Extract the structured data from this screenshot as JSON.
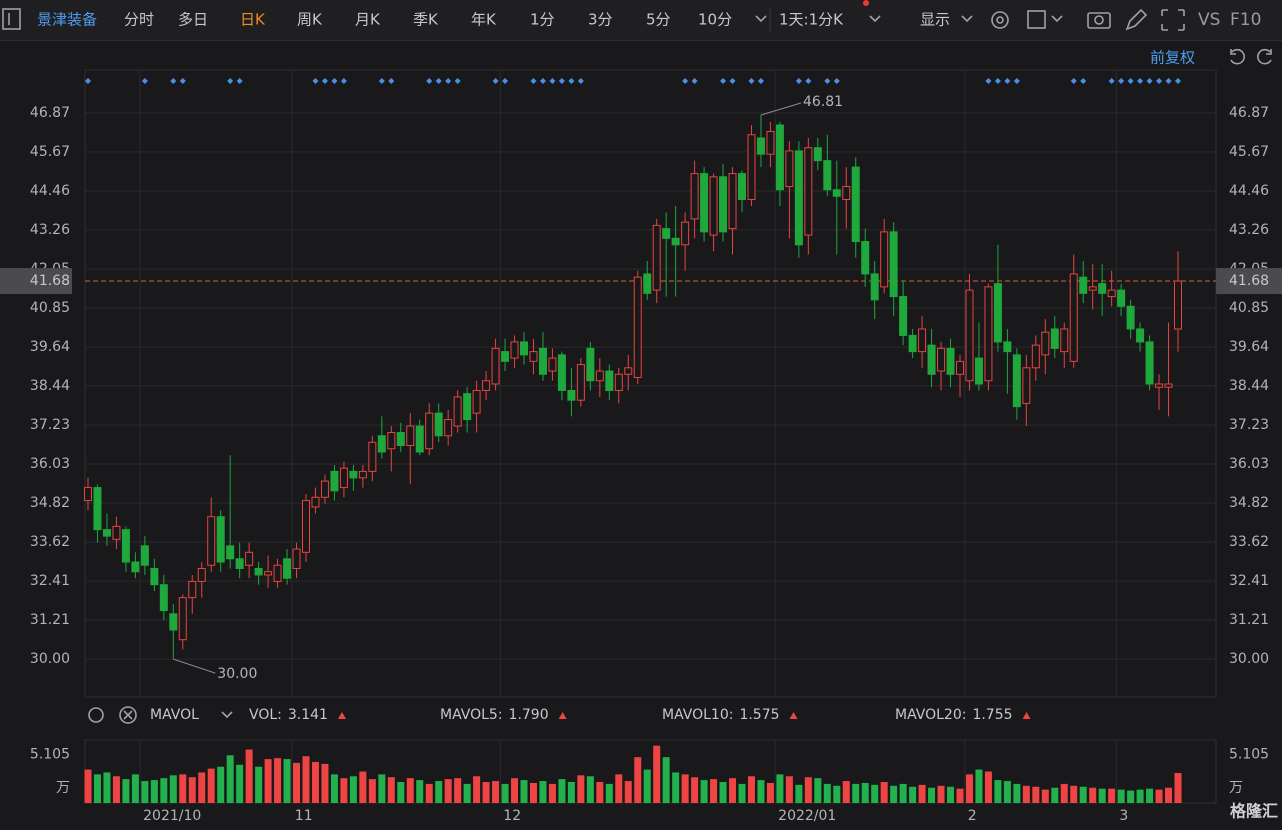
{
  "toolbar": {
    "stock": "景津装备",
    "periods": [
      "分时",
      "多日",
      "日K",
      "周K",
      "月K",
      "季K",
      "年K",
      "1分",
      "3分",
      "5分",
      "10分"
    ],
    "active": "日K",
    "range": "1天:1分K",
    "display": "显示",
    "vs": "VS",
    "f10": "F10"
  },
  "adjust": "前复权",
  "indicator_bar": {
    "name": "MAVOL",
    "items": [
      {
        "name": "VOL:",
        "value": "3.141",
        "color": "#ef4444"
      },
      {
        "name": "MAVOL5:",
        "value": "1.790",
        "color": "#f0a030"
      },
      {
        "name": "MAVOL10:",
        "value": "1.575",
        "color": "#3cb6e8"
      },
      {
        "name": "MAVOL20:",
        "value": "1.755",
        "color": "#e070e0"
      }
    ]
  },
  "watermark": "格隆汇",
  "chart_data": {
    "type": "candlestick",
    "categories": [
      null,
      null,
      null,
      null,
      null,
      null,
      "2021/10",
      null,
      null,
      null,
      null,
      null,
      null,
      null,
      null,
      null,
      null,
      null,
      null,
      null,
      null,
      null,
      "11",
      null,
      null,
      null,
      null,
      null,
      null,
      null,
      null,
      null,
      null,
      null,
      null,
      null,
      null,
      null,
      null,
      null,
      null,
      null,
      null,
      null,
      "12",
      null,
      null,
      null,
      null,
      null,
      null,
      null,
      null,
      null,
      null,
      null,
      null,
      null,
      null,
      null,
      null,
      null,
      null,
      null,
      null,
      null,
      null,
      null,
      null,
      null,
      null,
      null,
      null,
      "2022/01",
      null,
      null,
      null,
      null,
      null,
      null,
      null,
      null,
      null,
      null,
      null,
      null,
      null,
      null,
      null,
      null,
      null,
      null,
      null,
      "2",
      null,
      null,
      null,
      null,
      null,
      null,
      null,
      null,
      null,
      null,
      null,
      null,
      null,
      null,
      null,
      "3",
      null,
      null,
      null,
      null,
      null,
      null
    ],
    "open": [
      34.9,
      35.3,
      34.0,
      33.7,
      34.0,
      33.0,
      33.5,
      32.8,
      32.3,
      31.4,
      30.6,
      31.9,
      32.4,
      32.9,
      34.4,
      33.5,
      33.1,
      32.9,
      32.8,
      32.6,
      32.4,
      33.1,
      32.8,
      33.3,
      34.7,
      35.0,
      35.8,
      35.3,
      35.8,
      35.6,
      35.8,
      36.9,
      36.5,
      37.0,
      36.6,
      37.2,
      36.5,
      37.6,
      36.9,
      37.2,
      38.2,
      37.6,
      38.3,
      38.5,
      39.5,
      39.3,
      39.8,
      39.2,
      39.6,
      38.9,
      39.4,
      38.3,
      38.0,
      39.6,
      38.6,
      38.9,
      38.3,
      38.8,
      38.7,
      41.9,
      41.4,
      43.3,
      43.0,
      42.8,
      43.6,
      45.0,
      43.1,
      44.9,
      43.3,
      45.0,
      44.2,
      46.1,
      45.6,
      46.5,
      44.6,
      45.7,
      43.1,
      45.8,
      45.4,
      44.5,
      44.2,
      45.2,
      42.9,
      41.9,
      41.5,
      43.2,
      41.2,
      40.0,
      39.5,
      39.7,
      38.9,
      39.6,
      38.8,
      38.6,
      39.3,
      38.6,
      41.6,
      39.8,
      39.4,
      37.9,
      39.0,
      39.4,
      40.2,
      39.5,
      39.2,
      41.8,
      41.4,
      41.6,
      41.2,
      41.4,
      40.9,
      40.2,
      39.8,
      38.4,
      38.4,
      40.2
    ],
    "high": [
      35.6,
      35.4,
      34.5,
      34.4,
      34.1,
      33.3,
      33.8,
      33.1,
      32.6,
      31.7,
      32.0,
      32.6,
      33.0,
      35.0,
      34.6,
      36.3,
      33.6,
      33.6,
      33.0,
      33.2,
      33.1,
      33.4,
      33.6,
      35.1,
      35.3,
      35.7,
      36.0,
      36.1,
      36.0,
      36.0,
      36.9,
      37.5,
      37.2,
      37.3,
      37.6,
      37.4,
      37.9,
      37.9,
      37.7,
      38.3,
      38.4,
      38.6,
      38.9,
      39.9,
      39.9,
      40.0,
      40.1,
      39.9,
      40.1,
      39.6,
      39.5,
      39.0,
      39.3,
      39.8,
      39.3,
      39.1,
      39.0,
      39.4,
      42.0,
      42.3,
      43.6,
      43.8,
      44.0,
      43.8,
      45.4,
      45.2,
      45.0,
      45.3,
      45.2,
      45.1,
      46.5,
      46.81,
      46.6,
      46.6,
      46.0,
      46.0,
      46.1,
      46.1,
      46.2,
      45.4,
      45.2,
      45.5,
      43.3,
      42.3,
      43.6,
      43.5,
      41.7,
      40.2,
      40.6,
      40.2,
      39.8,
      39.9,
      39.4,
      41.9,
      40.4,
      41.6,
      42.8,
      40.2,
      39.6,
      39.4,
      40.0,
      40.5,
      40.6,
      40.4,
      42.5,
      42.3,
      42.2,
      42.2,
      42.0,
      41.6,
      41.1,
      40.4,
      40.0,
      38.8,
      40.4,
      42.6
    ],
    "low": [
      34.6,
      33.6,
      33.5,
      33.4,
      32.7,
      32.5,
      32.6,
      32.1,
      31.2,
      30.0,
      30.3,
      31.4,
      31.9,
      32.7,
      32.7,
      32.8,
      32.5,
      32.5,
      32.3,
      32.2,
      32.2,
      32.3,
      32.5,
      33.0,
      34.5,
      34.8,
      34.9,
      35.0,
      35.2,
      35.3,
      35.5,
      36.2,
      35.8,
      36.4,
      35.4,
      36.3,
      36.3,
      36.7,
      36.6,
      37.0,
      37.0,
      37.0,
      38.0,
      38.3,
      38.9,
      39.0,
      39.1,
      38.8,
      38.6,
      38.6,
      38.0,
      37.5,
      37.8,
      38.3,
      38.1,
      38.0,
      37.9,
      38.3,
      38.5,
      41.1,
      41.0,
      41.2,
      41.2,
      42.0,
      43.0,
      42.9,
      42.6,
      42.9,
      42.5,
      43.8,
      44.0,
      45.2,
      45.2,
      44.0,
      43.0,
      42.4,
      42.5,
      45.1,
      44.3,
      42.5,
      43.3,
      42.4,
      41.5,
      40.5,
      41.3,
      40.6,
      39.7,
      39.3,
      39.0,
      38.4,
      38.3,
      38.4,
      38.1,
      38.3,
      38.3,
      38.3,
      39.5,
      38.2,
      37.4,
      37.2,
      38.6,
      38.8,
      39.3,
      39.0,
      39.0,
      41.0,
      40.8,
      40.6,
      40.9,
      40.6,
      39.9,
      39.5,
      38.3,
      37.7,
      37.5,
      39.5
    ],
    "close": [
      35.3,
      34.0,
      33.8,
      34.1,
      33.0,
      32.7,
      32.9,
      32.3,
      31.5,
      30.9,
      31.9,
      32.4,
      32.8,
      34.4,
      33.0,
      33.1,
      32.8,
      33.3,
      32.6,
      32.7,
      32.9,
      32.5,
      33.4,
      34.9,
      35.0,
      35.5,
      35.2,
      35.9,
      35.6,
      35.8,
      36.7,
      36.4,
      37.0,
      36.6,
      37.2,
      36.4,
      37.6,
      36.9,
      37.4,
      38.1,
      37.4,
      38.3,
      38.6,
      39.6,
      39.2,
      39.8,
      39.4,
      39.5,
      38.8,
      39.3,
      38.3,
      38.0,
      39.1,
      38.6,
      38.9,
      38.3,
      38.8,
      39.0,
      41.8,
      41.3,
      43.4,
      43.0,
      42.8,
      43.5,
      45.0,
      43.2,
      44.9,
      43.2,
      45.0,
      44.2,
      46.2,
      45.6,
      46.3,
      44.5,
      45.7,
      42.8,
      45.8,
      45.4,
      44.5,
      44.3,
      44.6,
      42.9,
      41.9,
      41.1,
      43.2,
      41.2,
      40.0,
      39.5,
      40.2,
      38.8,
      39.6,
      38.8,
      39.2,
      41.4,
      38.5,
      41.5,
      39.8,
      39.5,
      37.8,
      39.0,
      39.7,
      40.1,
      39.6,
      40.2,
      41.9,
      41.3,
      41.5,
      41.3,
      41.4,
      40.9,
      40.2,
      39.8,
      38.5,
      38.5,
      38.5,
      41.68
    ],
    "volume": [
      3.5,
      3.0,
      3.2,
      2.8,
      2.5,
      3.0,
      2.3,
      2.4,
      2.6,
      2.9,
      3.0,
      2.7,
      3.2,
      3.6,
      3.8,
      5.0,
      4.0,
      5.6,
      3.8,
      4.6,
      4.7,
      4.6,
      4.2,
      4.9,
      4.3,
      4.1,
      3.0,
      2.6,
      2.8,
      3.3,
      2.5,
      3.0,
      2.7,
      2.2,
      2.6,
      2.4,
      2.0,
      2.3,
      2.5,
      2.6,
      2.0,
      2.8,
      2.2,
      2.3,
      2.0,
      2.6,
      2.4,
      2.1,
      2.3,
      2.0,
      2.5,
      2.2,
      2.9,
      2.8,
      2.2,
      2.0,
      3.0,
      2.3,
      4.8,
      3.5,
      6.0,
      4.8,
      3.2,
      3.0,
      2.7,
      2.4,
      2.5,
      2.2,
      2.6,
      2.0,
      2.8,
      2.4,
      2.1,
      3.0,
      2.8,
      1.9,
      2.7,
      2.6,
      2.0,
      1.8,
      2.3,
      2.0,
      2.1,
      1.9,
      2.2,
      1.8,
      2.0,
      1.7,
      1.9,
      1.6,
      1.8,
      1.7,
      1.5,
      3.0,
      3.5,
      3.3,
      2.4,
      2.3,
      2.0,
      1.8,
      1.7,
      1.4,
      1.6,
      2.0,
      1.8,
      1.7,
      1.6,
      1.5,
      1.5,
      1.4,
      1.3,
      1.4,
      1.5,
      1.4,
      1.6,
      3.141
    ],
    "up_color": "#e8433e",
    "down_color": "#1fa83c",
    "ylim": [
      28.83,
      48.2
    ],
    "yticks": [
      {
        "value": 30,
        "label": "30.00"
      },
      31.21,
      32.41,
      33.62,
      34.82,
      36.03,
      37.23,
      38.44,
      39.64,
      40.85,
      42.05,
      43.26,
      44.46,
      45.67,
      46.87
    ],
    "high_label": "46.81",
    "low_label": "30.00",
    "last_price": {
      "value": 41.68,
      "label": "41.68"
    },
    "vol_ylim": [
      0,
      6.6
    ],
    "vol_yticks": [
      5.105
    ],
    "vol_unit": "万",
    "grid": true
  }
}
